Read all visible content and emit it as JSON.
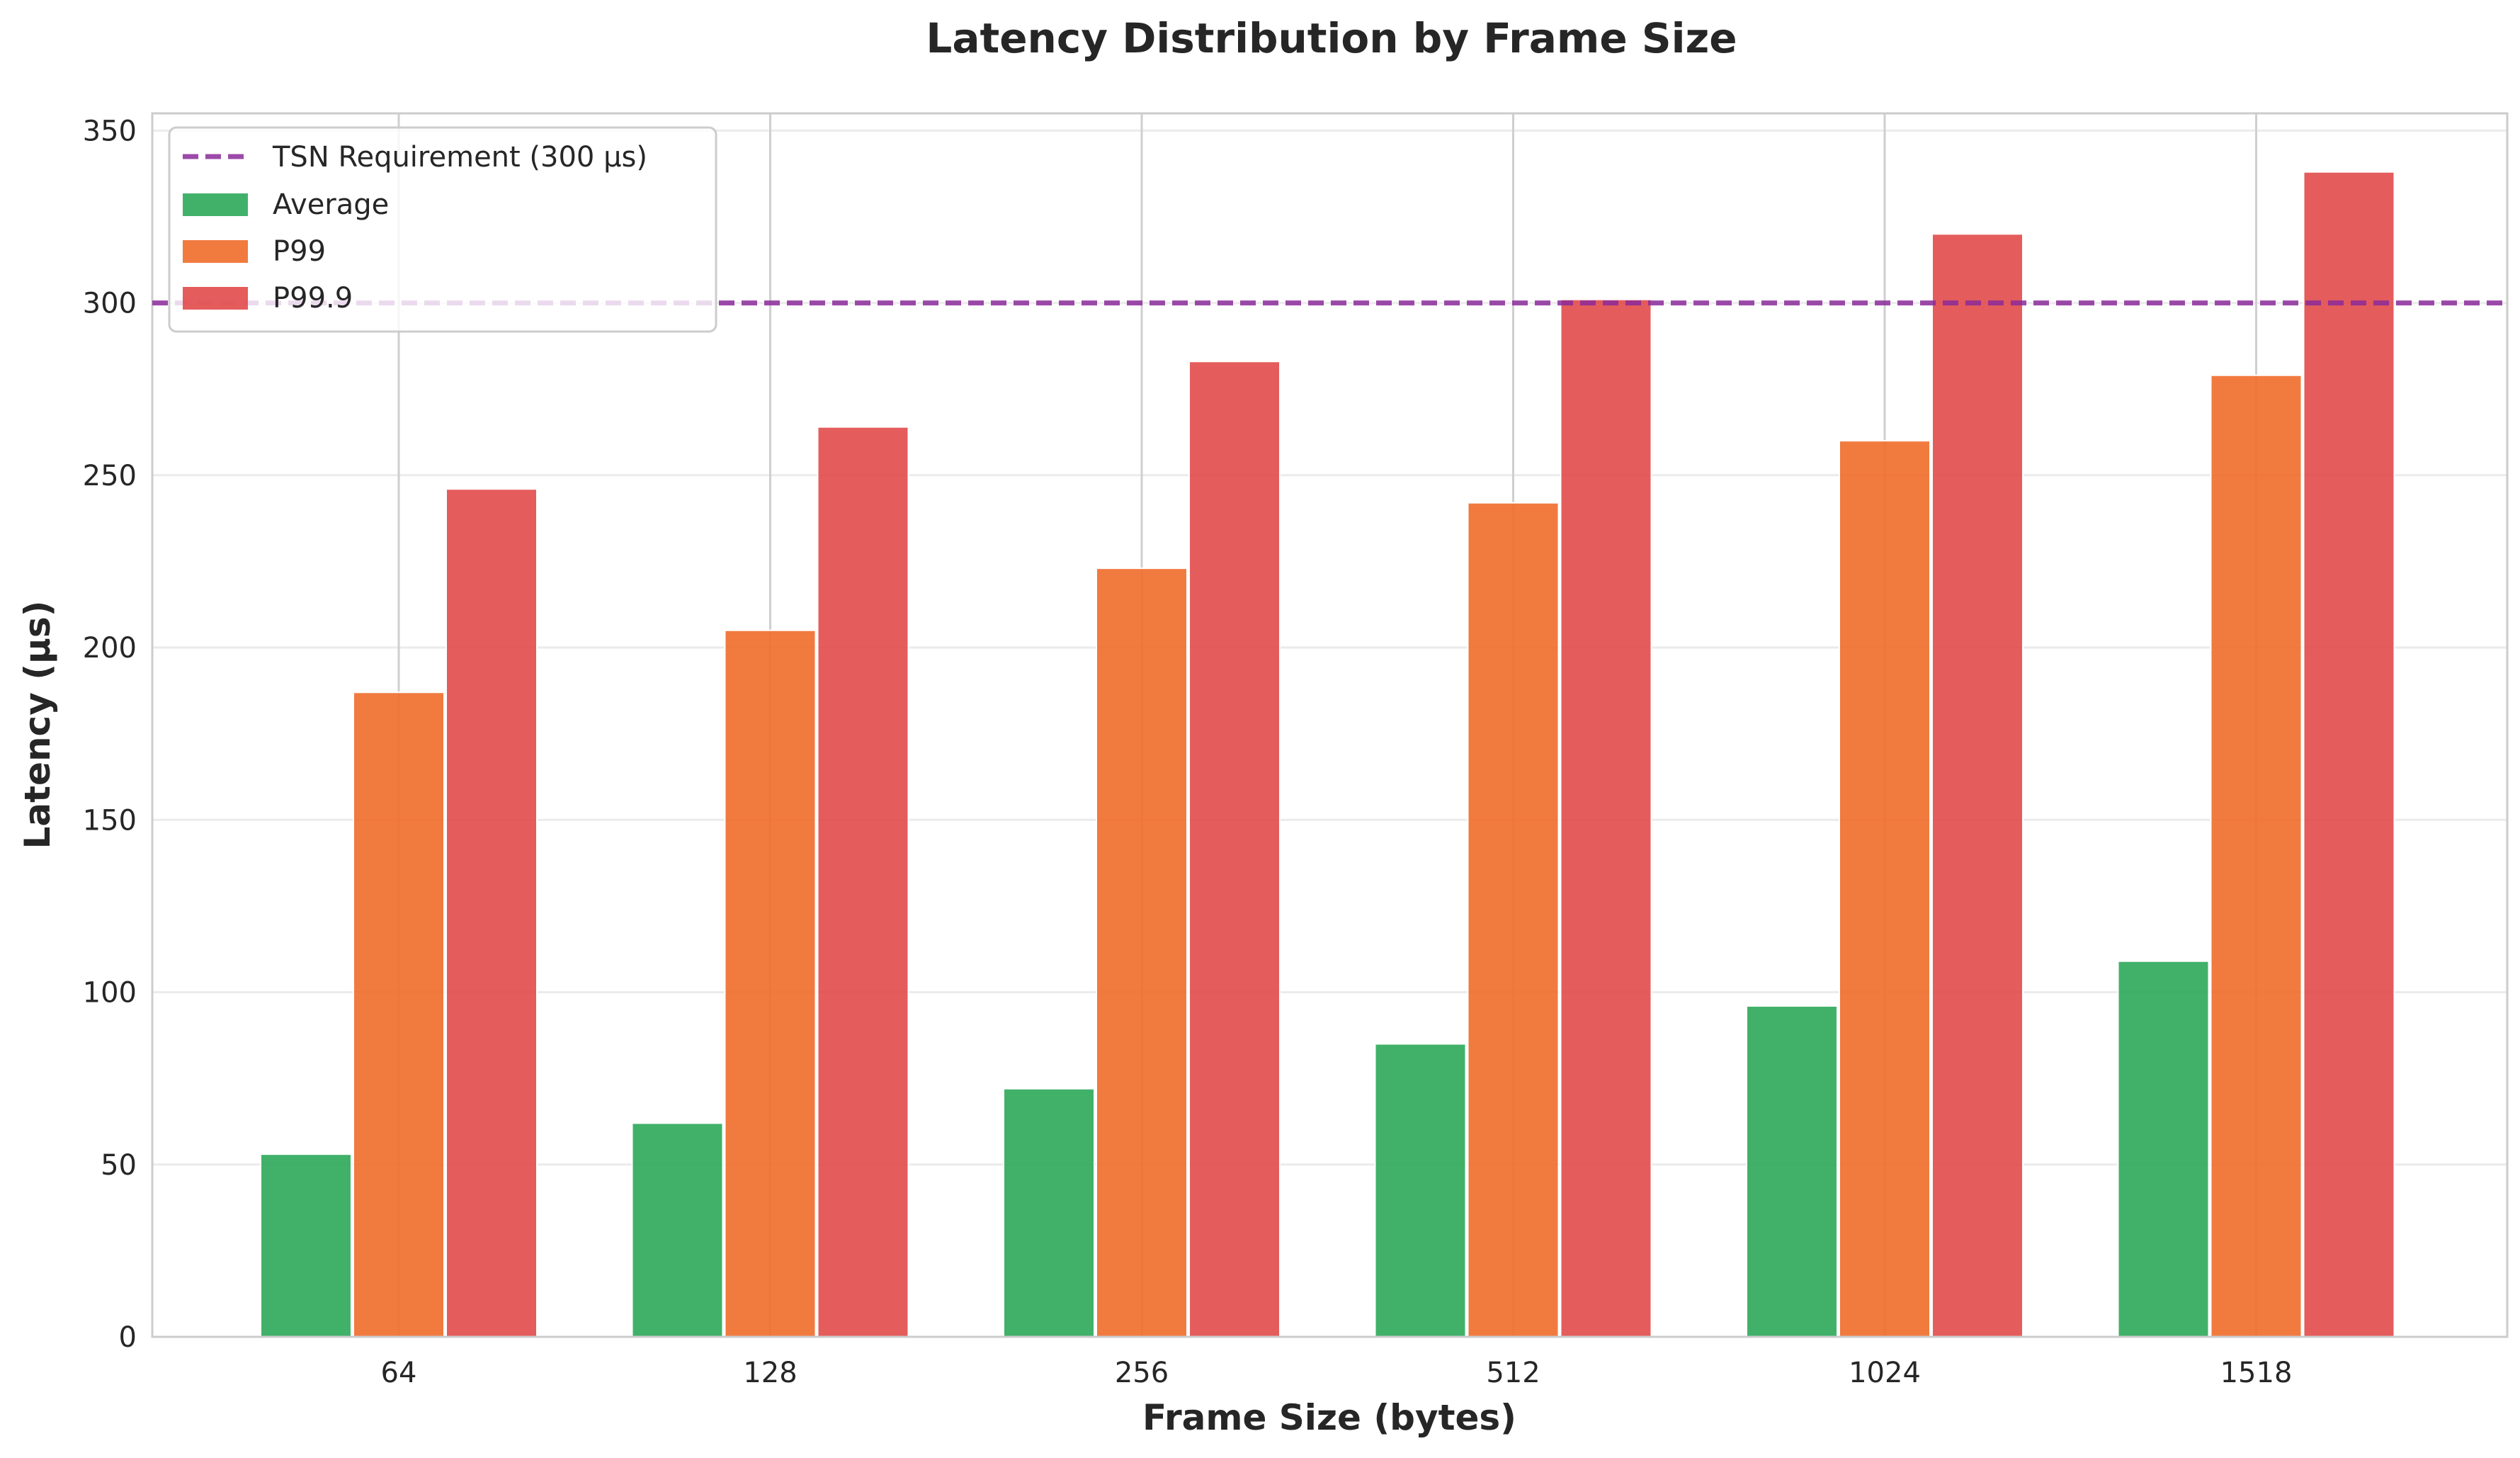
{
  "chart_data": {
    "type": "bar",
    "title": "Latency Distribution by Frame Size",
    "xlabel": "Frame Size (bytes)",
    "ylabel": "Latency (μs)",
    "categories": [
      "64",
      "128",
      "256",
      "512",
      "1024",
      "1518"
    ],
    "series": [
      {
        "name": "Average",
        "color": "#2ca85a",
        "values": [
          53,
          62,
          72,
          85,
          96,
          109
        ]
      },
      {
        "name": "P99",
        "color": "#ef6c2a",
        "values": [
          187,
          205,
          223,
          242,
          260,
          279
        ]
      },
      {
        "name": "P99.9",
        "color": "#e24a4a",
        "values": [
          246,
          264,
          283,
          301,
          320,
          338
        ]
      }
    ],
    "reference_line": {
      "name": "TSN Requirement (300 μs)",
      "value": 300,
      "color": "#8b2a9a",
      "style": "dashed"
    },
    "ylim": [
      0,
      355
    ],
    "yticks": [
      0,
      50,
      100,
      150,
      200,
      250,
      300,
      350
    ],
    "grid": true,
    "legend_position": "top-left"
  }
}
